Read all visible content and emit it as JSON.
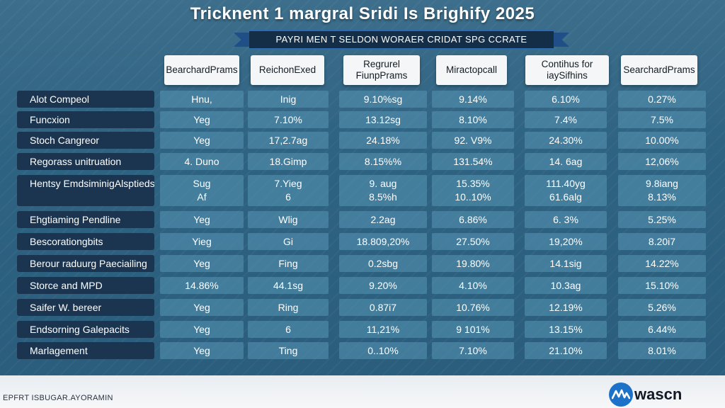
{
  "title": "Tricknent 1 margral Sridi Is Brighify 2025",
  "banner": "PAYRI MEN T SELDON WORAER CRIDAT SPG CCRATE",
  "chart_data": {
    "type": "table",
    "title": "Tricknent 1 margral Sridi Is Brighify 2025",
    "subtitle": "PAYRI MEN T SELDON WORAER CRIDAT SPG CCRATE",
    "columns": [
      "Bearchard Prams",
      "Reichon Exed",
      "Regrurel Fiunp Prams",
      "Miractop call",
      "Contihus for iay Sifhins",
      "Searchard Prams"
    ],
    "rows": [
      {
        "label": "Alot Compeol",
        "cells": [
          "Hnu,",
          "Inig",
          "9.10%sg",
          "9.14%",
          "6.10%",
          "0.27%"
        ]
      },
      {
        "label": "Funcxion",
        "cells": [
          "Yeg",
          "7.10%",
          "13.12sg",
          "8.10%",
          "7.4%",
          "7.5%"
        ]
      },
      {
        "label": "Stoch Cangreor",
        "cells": [
          "Yeg",
          "17,2.7ag",
          "24.18%",
          "92. V9%",
          "24.30%",
          "10.00%"
        ]
      },
      {
        "label": "Regorass unitruation",
        "cells": [
          "4. Duno",
          "18.Gimp",
          "8.15%%",
          "131.54%",
          "14. 6ag",
          "12,06%"
        ]
      },
      {
        "label": "Hentsy Emdsiminig Alsptieds",
        "cells": [
          "Sug Af",
          "7.Yieg 6",
          "9. aug 8.5%h",
          "15.35% 10..10%",
          "111.40yg 61.6alg",
          "9.8iang 8.13%"
        ]
      },
      {
        "label": "Ehgtiaming Pendline",
        "cells": [
          "Yeg",
          "Wlig",
          "2.2ag",
          "6.86%",
          "6. 3%",
          "5.25%"
        ]
      },
      {
        "label": "Bescorationgbits",
        "cells": [
          "Yieg",
          "Gi",
          "18.809,20%",
          "27.50%",
          "19,20%",
          "8.20i7"
        ]
      },
      {
        "label": "Berour raduurg Paeciailing",
        "cells": [
          "Yeg",
          "Fing",
          "0.2sbg",
          "19.80%",
          "14.1sig",
          "14.22%"
        ]
      },
      {
        "label": "Storce and MPD",
        "cells": [
          "14.86%",
          "44.1sg",
          "9.20%",
          "4.10%",
          "10.3ag",
          "15.10%"
        ]
      },
      {
        "label": "Saifer W. bereer",
        "cells": [
          "Yeg",
          "Ring",
          "0.87i7",
          "10.76%",
          "12.19%",
          "5.26%"
        ]
      },
      {
        "label": "Endsorning Galepacits",
        "cells": [
          "Yeg",
          "6",
          "11,21%",
          "9 101%",
          "13.15%",
          "6.44%"
        ]
      },
      {
        "label": "Marlagement",
        "cells": [
          "Yeg",
          "Ting",
          "0..10%",
          "7.10%",
          "21.10%",
          "8.01%"
        ]
      }
    ]
  },
  "table_view": {
    "headers": [
      [
        "Bearchard",
        "Prams"
      ],
      [
        "Reichon",
        "Exed"
      ],
      [
        "Regrurel Fiunp",
        "Prams"
      ],
      [
        "Miractop",
        "call"
      ],
      [
        "Contihus for iay",
        "Sifhins"
      ],
      [
        "Searchard",
        "Prams"
      ]
    ],
    "rows": [
      {
        "label": [
          "Alot Compeol"
        ],
        "cells": [
          [
            "Hnu,"
          ],
          [
            "Inig"
          ],
          [
            "9.10%sg"
          ],
          [
            "9.14%"
          ],
          [
            "6.10%"
          ],
          [
            "0.27%"
          ]
        ]
      },
      {
        "label": [
          "Funcxion"
        ],
        "cells": [
          [
            "Yeg"
          ],
          [
            "7.10%"
          ],
          [
            "13.12sg"
          ],
          [
            "8.10%"
          ],
          [
            "7.4%"
          ],
          [
            "7.5%"
          ]
        ]
      },
      {
        "label": [
          "Stoch Cangreor"
        ],
        "cells": [
          [
            "Yeg"
          ],
          [
            "17,2.7ag"
          ],
          [
            "24.18%"
          ],
          [
            "92. V9%"
          ],
          [
            "24.30%"
          ],
          [
            "10.00%"
          ]
        ]
      },
      {
        "label": [
          "Regorass unitruation"
        ],
        "cells": [
          [
            "4. Duno"
          ],
          [
            "18.Gimp"
          ],
          [
            "8.15%%"
          ],
          [
            "131.54%"
          ],
          [
            "14. 6ag"
          ],
          [
            "12,06%"
          ]
        ]
      },
      {
        "label": [
          "Hentsy Emdsiminig",
          "Alsptieds"
        ],
        "cells": [
          [
            "Sug",
            "Af"
          ],
          [
            "7.Yieg",
            "6"
          ],
          [
            "9. aug",
            "8.5%h"
          ],
          [
            "15.35%",
            "10..10%"
          ],
          [
            "111.40yg",
            "61.6alg"
          ],
          [
            "9.8iang",
            "8.13%"
          ]
        ]
      },
      {
        "label": [
          "Ehgtiaming Pendline"
        ],
        "cells": [
          [
            "Yeg"
          ],
          [
            "Wlig"
          ],
          [
            "2.2ag"
          ],
          [
            "6.86%"
          ],
          [
            "6. 3%"
          ],
          [
            "5.25%"
          ]
        ]
      },
      {
        "label": [
          "Bescorationgbits"
        ],
        "cells": [
          [
            "Yieg"
          ],
          [
            "Gi"
          ],
          [
            "18.809,20%"
          ],
          [
            "27.50%"
          ],
          [
            "19,20%"
          ],
          [
            "8.20i7"
          ]
        ]
      },
      {
        "label": [
          "Berour raduurg Paeciailing"
        ],
        "cells": [
          [
            "Yeg"
          ],
          [
            "Fing"
          ],
          [
            "0.2sbg"
          ],
          [
            "19.80%"
          ],
          [
            "14.1sig"
          ],
          [
            "14.22%"
          ]
        ]
      },
      {
        "label": [
          "Storce and MPD"
        ],
        "cells": [
          [
            "14.86%"
          ],
          [
            "44.1sg"
          ],
          [
            "9.20%"
          ],
          [
            "4.10%"
          ],
          [
            "10.3ag"
          ],
          [
            "15.10%"
          ]
        ]
      },
      {
        "label": [
          "Saifer W. bereer"
        ],
        "cells": [
          [
            "Yeg"
          ],
          [
            "Ring"
          ],
          [
            "0.87i7"
          ],
          [
            "10.76%"
          ],
          [
            "12.19%"
          ],
          [
            "5.26%"
          ]
        ]
      },
      {
        "label": [
          "Endsorning Galepacits"
        ],
        "cells": [
          [
            "Yeg"
          ],
          [
            "6"
          ],
          [
            "11,21%"
          ],
          [
            "9 101%"
          ],
          [
            "13.15%"
          ],
          [
            "6.44%"
          ]
        ]
      },
      {
        "label": [
          "Marlagement"
        ],
        "cells": [
          [
            "Yeg"
          ],
          [
            "Ting"
          ],
          [
            "0..10%"
          ],
          [
            "7.10%"
          ],
          [
            "21.10%"
          ],
          [
            "8.01%"
          ]
        ]
      }
    ]
  },
  "footer": {
    "text": "EPFRT ISBUGAR.AYORAMIN",
    "logo_text": "wascn",
    "logo_icon": "wave-icon"
  },
  "colors": {
    "background": "#2f6382",
    "row_label_bg": "#1b3550",
    "header_bg": "#f4f6f8",
    "banner_bg": "#142e47",
    "banner_ribbon": "#1f4f86",
    "logo_blue": "#1b72c8"
  }
}
